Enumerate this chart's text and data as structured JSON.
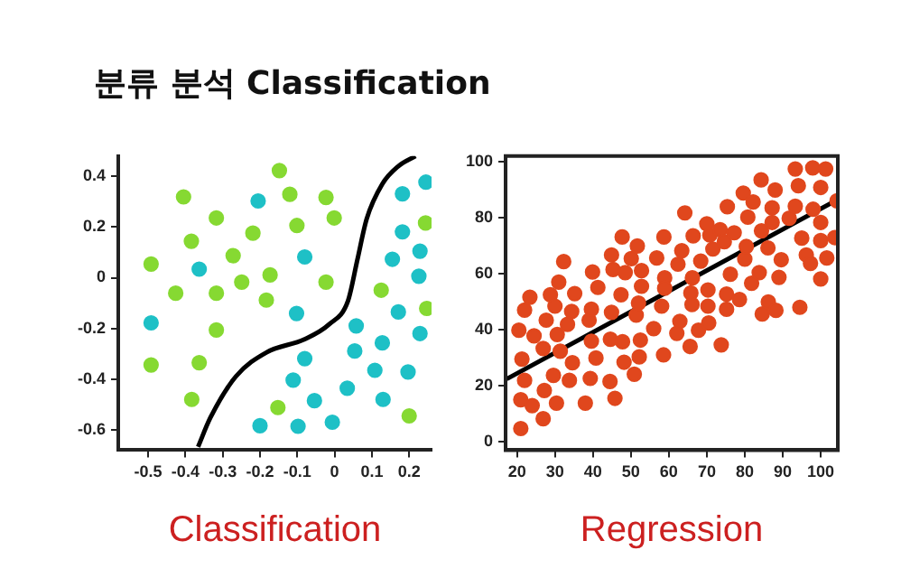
{
  "chart_data": [
    {
      "type": "scatter",
      "title": "분류 분석 Classification",
      "xlabel": "Classification",
      "xlim": [
        -0.58,
        0.26
      ],
      "ylim": [
        -0.68,
        0.48
      ],
      "xticks": [
        -0.5,
        -0.4,
        -0.3,
        -0.2,
        -0.1,
        0,
        0.1,
        0.2
      ],
      "yticks": [
        -0.6,
        -0.4,
        -0.2,
        0,
        0.2,
        0.4
      ],
      "grid": false,
      "legend": false,
      "series": [
        {
          "marker": "circle",
          "color": "#86d932",
          "x": [
            -0.148,
            -0.405,
            -0.12,
            -0.023,
            -0.317,
            -0.219,
            -0.101,
            -0.001,
            -0.384,
            -0.272,
            -0.492,
            -0.249,
            -0.173,
            -0.023,
            -0.426,
            -0.317,
            -0.183,
            -0.317,
            -0.492,
            -0.363,
            -0.383,
            -0.152,
            0.125,
            0.247,
            0.244,
            0.2
          ],
          "values": [
            0.423,
            0.319,
            0.329,
            0.317,
            0.236,
            0.176,
            0.206,
            0.236,
            0.144,
            0.087,
            0.054,
            -0.017,
            0.011,
            -0.017,
            -0.061,
            -0.061,
            -0.088,
            -0.206,
            -0.344,
            -0.335,
            -0.48,
            -0.512,
            -0.049,
            -0.121,
            0.216,
            -0.545
          ]
        },
        {
          "marker": "circle",
          "color": "#1ec0c6",
          "x": [
            -0.205,
            -0.363,
            -0.08,
            -0.492,
            -0.102,
            0.182,
            0.245,
            0.182,
            0.229,
            0.155,
            0.226,
            0.171,
            0.229,
            0.058,
            0.128,
            0.054,
            -0.08,
            0.108,
            0.197,
            -0.111,
            0.034,
            -0.054,
            0.13,
            -0.2,
            -0.098,
            -0.006
          ],
          "values": [
            0.303,
            0.034,
            0.082,
            -0.178,
            -0.141,
            0.331,
            0.377,
            0.181,
            0.105,
            0.073,
            0.006,
            -0.135,
            -0.22,
            -0.19,
            -0.257,
            -0.289,
            -0.319,
            -0.365,
            -0.372,
            -0.404,
            -0.436,
            -0.485,
            -0.48,
            -0.584,
            -0.586,
            -0.57
          ]
        },
        {
          "type": "line",
          "marker": "none",
          "color": "#000000",
          "x": [
            -0.366,
            -0.333,
            -0.265,
            -0.182,
            -0.081,
            -0.014,
            0.036,
            0.061,
            0.086,
            0.128,
            0.17,
            0.217
          ],
          "values": [
            -0.667,
            -0.552,
            -0.39,
            -0.294,
            -0.243,
            -0.183,
            -0.091,
            0.07,
            0.232,
            0.37,
            0.439,
            0.48
          ]
        }
      ]
    },
    {
      "type": "scatter",
      "xlabel": "Regression",
      "xlim": [
        17,
        104.5
      ],
      "ylim": [
        -3,
        102
      ],
      "xticks": [
        20,
        30,
        40,
        50,
        60,
        70,
        80,
        90,
        100
      ],
      "yticks": [
        0,
        20,
        40,
        60,
        80,
        100
      ],
      "grid": false,
      "legend": false,
      "series": [
        {
          "marker": "circle",
          "color": "#e0471d",
          "x": [
            20.5,
            21,
            21,
            21.3,
            22,
            22,
            23.4,
            24,
            24.5,
            26.9,
            26.9,
            27.2,
            27.7,
            28.8,
            29.6,
            30,
            30.4,
            30.6,
            31,
            31.4,
            32.3,
            33.3,
            33.8,
            34.4,
            34.6,
            35.2,
            38,
            39,
            39.3,
            39.6,
            39.6,
            39.9,
            40.8,
            41.3,
            44.5,
            44.6,
            44.9,
            44.9,
            45.3,
            45.8,
            47.4,
            47.7,
            47.8,
            48.2,
            48.5,
            50.1,
            50.9,
            51.4,
            51.7,
            52,
            52.2,
            52.5,
            52.8,
            52.8,
            56,
            56.8,
            58.1,
            58.6,
            58.7,
            58.9,
            58.9,
            62.1,
            62.4,
            62.9,
            63.4,
            64.2,
            65.6,
            66.1,
            65.8,
            66.2,
            66.4,
            67.8,
            68.4,
            70,
            70.3,
            70.3,
            70.5,
            70.8,
            71.6,
            73.5,
            73.8,
            74.6,
            75.2,
            75.2,
            75.4,
            76.2,
            77.2,
            78.6,
            79.6,
            80,
            80.4,
            80.8,
            81.8,
            82.2,
            83.8,
            84.3,
            84.4,
            84.6,
            86.1,
            86.2,
            87.2,
            87.2,
            88,
            88.2,
            89,
            89.6,
            91.7,
            93.3,
            93.3,
            94.1,
            94.5,
            95,
            96.2,
            97.3,
            97.9,
            98,
            100,
            100,
            100,
            100,
            101.3,
            101.6,
            103.7,
            104.3
          ],
          "values": [
            39.8,
            15,
            4.7,
            29.5,
            21.9,
            47,
            51.6,
            12.9,
            37.8,
            33.3,
            8.2,
            18.3,
            43.4,
            52.5,
            23.7,
            48.4,
            13.8,
            38.3,
            57,
            32.3,
            64.3,
            41.9,
            21.9,
            46.5,
            28.2,
            52.9,
            13.8,
            43.4,
            22.6,
            35.9,
            47.3,
            60.6,
            29.9,
            55.1,
            21.5,
            36.6,
            46.2,
            66.7,
            61.5,
            15.5,
            52.5,
            73.1,
            35.7,
            28.4,
            60.4,
            65.4,
            24.1,
            45.2,
            69.9,
            49.5,
            30.3,
            36.3,
            61.1,
            55.5,
            40.4,
            65.6,
            48.4,
            31,
            73.1,
            58.5,
            54.8,
            38.7,
            63.4,
            43,
            68.2,
            81.7,
            34,
            49,
            53.1,
            58.5,
            73.5,
            39.8,
            64.5,
            77.8,
            54.2,
            48.4,
            42.4,
            73.8,
            68.8,
            75.7,
            34.6,
            71.4,
            52.7,
            47.3,
            83.9,
            59.8,
            74.6,
            50.8,
            88.8,
            65.2,
            69.7,
            80.2,
            56.6,
            85.6,
            60.4,
            93.5,
            75.3,
            45.6,
            69.2,
            49.9,
            78.3,
            83.5,
            89.9,
            46.9,
            58.7,
            65,
            79.8,
            84.1,
            97.4,
            91.4,
            48,
            72.7,
            66.7,
            63.7,
            97.8,
            83,
            78.3,
            90.8,
            58.1,
            71.8,
            97.4,
            65.6,
            72.9,
            86
          ]
        },
        {
          "type": "line",
          "marker": "none",
          "color": "#000000",
          "x": [
            17.3,
            104.5
          ],
          "values": [
            22.4,
            86.5
          ]
        }
      ]
    }
  ]
}
